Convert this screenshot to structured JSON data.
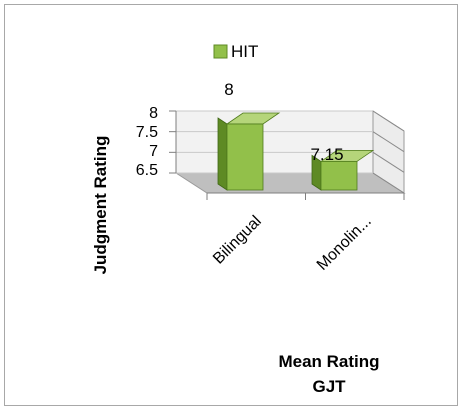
{
  "chart_data": {
    "type": "bar",
    "categories": [
      "Bilingual",
      "Monolin..."
    ],
    "series": [
      {
        "name": "HIT",
        "values": [
          8,
          7.15
        ],
        "color": "#92c04a"
      }
    ],
    "data_labels": [
      "8",
      "7.15"
    ],
    "title": "",
    "xlabel": "Mean Rating GJT",
    "xlabel_lines": [
      "Mean Rating",
      "GJT"
    ],
    "ylabel": "Judgment Rating",
    "yticks": [
      "8",
      "7.5",
      "7",
      "6.5"
    ],
    "ylim": [
      6.5,
      8
    ],
    "legend_position": "top",
    "grid": true,
    "style": "3d"
  },
  "colors": {
    "bar_front": "#92c04a",
    "bar_top": "#b5d57a",
    "bar_side": "#5e8a24",
    "wall": "#f2f2f2",
    "floor": "#bfbfbf"
  }
}
